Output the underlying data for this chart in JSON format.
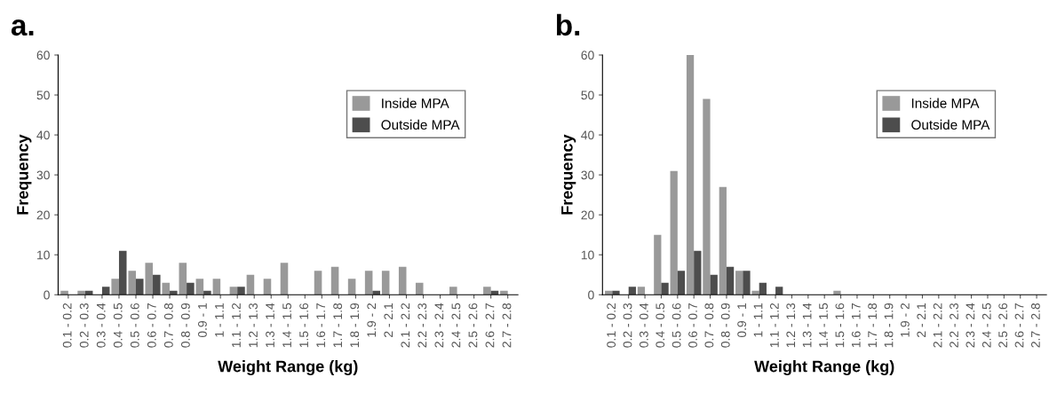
{
  "chart_data": [
    {
      "type": "bar",
      "title": "a.",
      "xlabel": "Weight Range (kg)",
      "ylabel": "Frequency",
      "categories": [
        "0.1 - 0.2",
        "0.2 - 0.3",
        "0.3 - 0.4",
        "0.4 - 0.5",
        "0.5 - 0.6",
        "0.6 - 0.7",
        "0.7 - 0.8",
        "0.8 - 0.9",
        "0.9 - 1",
        "1 - 1.1",
        "1.1 - 1.2",
        "1.2 - 1.3",
        "1.3 - 1.4",
        "1.4 - 1.5",
        "1.5 - 1.6",
        "1.6 - 1.7",
        "1.7 - 1.8",
        "1.8 - 1.9",
        "1.9 - 2",
        "2 - 2.1",
        "2.1 - 2.2",
        "2.2 - 2.3",
        "2.3 - 2.4",
        "2.4 - 2.5",
        "2.5 - 2.6",
        "2.6 - 2.7",
        "2.7 - 2.8"
      ],
      "series": [
        {
          "name": "Inside MPA",
          "color": "#999999",
          "values": [
            1,
            1,
            0,
            4,
            6,
            8,
            3,
            8,
            4,
            4,
            2,
            5,
            4,
            8,
            0,
            6,
            7,
            4,
            6,
            6,
            7,
            3,
            0,
            2,
            0,
            2,
            1
          ]
        },
        {
          "name": "Outside MPA",
          "color": "#4d4d4d",
          "values": [
            0,
            1,
            2,
            11,
            4,
            5,
            1,
            3,
            1,
            0,
            2,
            0,
            0,
            0,
            0,
            0,
            0,
            0,
            1,
            0,
            0,
            0,
            0,
            0,
            0,
            1,
            0
          ]
        }
      ],
      "ylim": [
        0,
        60
      ],
      "yticks": [
        0,
        10,
        20,
        30,
        40,
        50,
        60
      ],
      "grid": false,
      "legend": "top right"
    },
    {
      "type": "bar",
      "title": "b.",
      "xlabel": "Weight Range (kg)",
      "ylabel": "Frequency",
      "categories": [
        "0.1 - 0.2",
        "0.2 - 0.3",
        "0.3 - 0.4",
        "0.4 - 0.5",
        "0.5 - 0.6",
        "0.6 - 0.7",
        "0.7 - 0.8",
        "0.8 - 0.9",
        "0.9 - 1",
        "1 - 1.1",
        "1.1 - 1.2",
        "1.2 - 1.3",
        "1.3 - 1.4",
        "1.4 - 1.5",
        "1.5 - 1.6",
        "1.6 - 1.7",
        "1.7 - 1.8",
        "1.8 - 1.9",
        "1.9 - 2",
        "2 - 2.1",
        "2.1 - 2.2",
        "2.2 - 2.3",
        "2.3 - 2.4",
        "2.4 - 2.5",
        "2.5 - 2.6",
        "2.6 - 2.7",
        "2.7 - 2.8"
      ],
      "series": [
        {
          "name": "Inside MPA",
          "color": "#999999",
          "values": [
            1,
            0,
            2,
            15,
            31,
            60,
            49,
            27,
            6,
            1,
            0,
            0,
            0,
            0,
            1,
            0,
            0,
            0,
            0,
            0,
            0,
            0,
            0,
            0,
            0,
            0,
            0
          ]
        },
        {
          "name": "Outside MPA",
          "color": "#4d4d4d",
          "values": [
            1,
            2,
            0,
            3,
            6,
            11,
            5,
            7,
            6,
            3,
            2,
            0,
            0,
            0,
            0,
            0,
            0,
            0,
            0,
            0,
            0,
            0,
            0,
            0,
            0,
            0,
            0
          ]
        }
      ],
      "ylim": [
        0,
        60
      ],
      "yticks": [
        0,
        10,
        20,
        30,
        40,
        50,
        60
      ],
      "grid": false,
      "legend": "top right"
    }
  ]
}
